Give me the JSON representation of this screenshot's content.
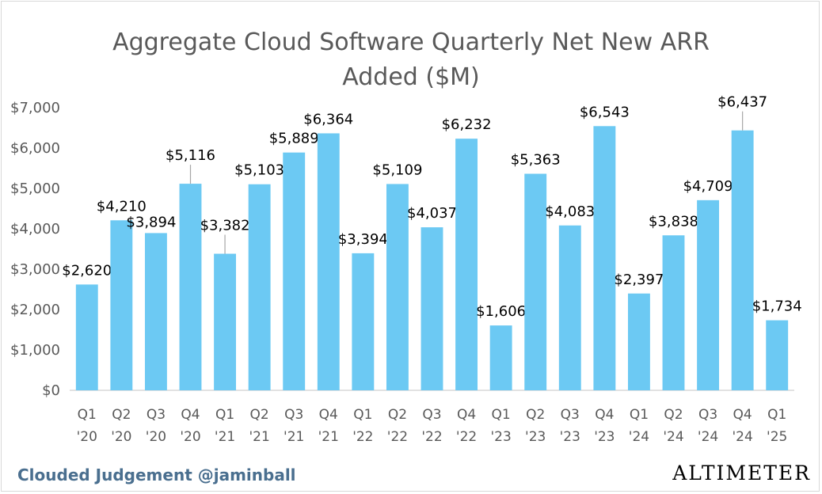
{
  "chart_data": {
    "type": "bar",
    "title_lines": [
      "Aggregate Cloud Software Quarterly Net New ARR",
      "Added ($M)"
    ],
    "categories": [
      [
        "Q1",
        "'20"
      ],
      [
        "Q2",
        "'20"
      ],
      [
        "Q3",
        "'20"
      ],
      [
        "Q4",
        "'20"
      ],
      [
        "Q1",
        "'21"
      ],
      [
        "Q2",
        "'21"
      ],
      [
        "Q3",
        "'21"
      ],
      [
        "Q4",
        "'21"
      ],
      [
        "Q1",
        "'22"
      ],
      [
        "Q2",
        "'22"
      ],
      [
        "Q3",
        "'22"
      ],
      [
        "Q4",
        "'22"
      ],
      [
        "Q1",
        "'23"
      ],
      [
        "Q2",
        "'23"
      ],
      [
        "Q3",
        "'23"
      ],
      [
        "Q4",
        "'23"
      ],
      [
        "Q1",
        "'24"
      ],
      [
        "Q2",
        "'24"
      ],
      [
        "Q3",
        "'24"
      ],
      [
        "Q4",
        "'24"
      ],
      [
        "Q1",
        "'25"
      ]
    ],
    "values": [
      2620,
      4210,
      3894,
      5116,
      3382,
      5103,
      5889,
      6364,
      3394,
      5109,
      4037,
      6232,
      1606,
      5363,
      4083,
      6543,
      2397,
      3838,
      4709,
      6437,
      1734
    ],
    "data_labels": [
      "$2,620",
      "$4,210",
      "$3,894",
      "$5,116",
      "$3,382",
      "$5,103",
      "$5,889",
      "$6,364",
      "$3,394",
      "$5,109",
      "$4,037",
      "$6,232",
      "$1,606",
      "$5,363",
      "$4,083",
      "$6,543",
      "$2,397",
      "$3,838",
      "$4,709",
      "$6,437",
      "$1,734"
    ],
    "y_ticks": [
      0,
      1000,
      2000,
      3000,
      4000,
      5000,
      6000,
      7000
    ],
    "y_tick_labels": [
      "$0",
      "$1,000",
      "$2,000",
      "$3,000",
      "$4,000",
      "$5,000",
      "$6,000",
      "$7,000"
    ],
    "ylim": [
      0,
      7000
    ],
    "grid": false,
    "bar_color": "#6cc9f3",
    "axis_color": "#d9d9d9"
  },
  "footer": {
    "left": "Clouded Judgement @jaminball",
    "right": "ALTIMETER"
  }
}
